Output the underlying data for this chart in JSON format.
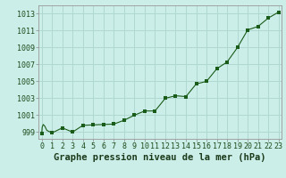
{
  "hours": [
    0,
    0.05,
    0.15,
    0.3,
    0.5,
    1,
    2,
    3,
    4,
    5,
    6,
    7,
    8,
    9,
    10,
    11,
    12,
    13,
    14,
    15,
    16,
    17,
    18,
    19,
    20,
    21,
    22,
    23
  ],
  "pressure": [
    998.8,
    999.6,
    999.9,
    999.7,
    999.2,
    998.9,
    999.5,
    999.0,
    999.8,
    999.85,
    999.9,
    999.95,
    1000.4,
    1001.0,
    1001.5,
    1001.5,
    1003.0,
    1003.3,
    1003.2,
    1004.7,
    1005.0,
    1006.5,
    1007.3,
    1009.0,
    1011.1,
    1011.5,
    1012.5,
    1013.2
  ],
  "hours_markers": [
    0,
    1,
    2,
    3,
    4,
    5,
    6,
    7,
    8,
    9,
    10,
    11,
    12,
    13,
    14,
    15,
    16,
    17,
    18,
    19,
    20,
    21,
    22,
    23
  ],
  "pressure_markers": [
    998.8,
    998.9,
    999.5,
    999.0,
    999.8,
    999.85,
    999.9,
    999.95,
    1000.4,
    1001.0,
    1001.5,
    1001.5,
    1003.0,
    1003.3,
    1003.2,
    1004.7,
    1005.0,
    1006.5,
    1007.3,
    1009.0,
    1011.1,
    1011.5,
    1012.5,
    1013.2
  ],
  "line_color": "#1a5c1a",
  "marker_color": "#1a5c1a",
  "bg_color": "#cceee8",
  "grid_color": "#b0d8d0",
  "xlabel": "Graphe pression niveau de la mer (hPa)",
  "ylim": [
    998.2,
    1014.0
  ],
  "yticks": [
    999,
    1001,
    1003,
    1005,
    1007,
    1009,
    1011,
    1013
  ],
  "xticks": [
    0,
    1,
    2,
    3,
    4,
    5,
    6,
    7,
    8,
    9,
    10,
    11,
    12,
    13,
    14,
    15,
    16,
    17,
    18,
    19,
    20,
    21,
    22,
    23
  ],
  "xlabel_fontsize": 7.5,
  "tick_fontsize": 6.0
}
